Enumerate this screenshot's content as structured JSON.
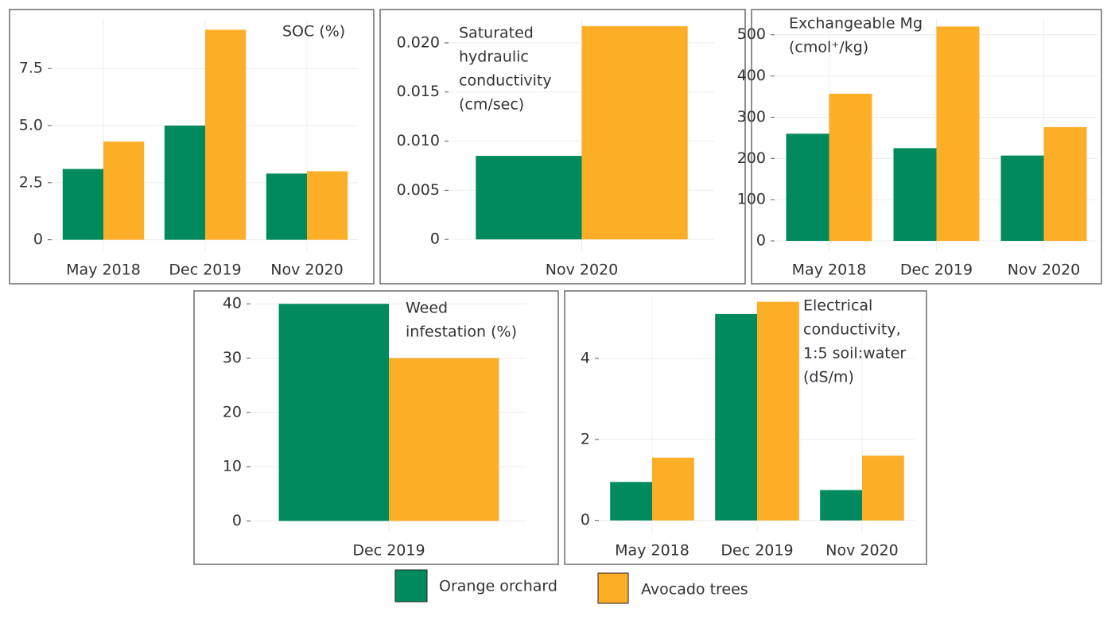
{
  "chart_data": [
    {
      "type": "bar",
      "title": [
        "SOC (%)"
      ],
      "categories": [
        "May 2018",
        "Dec 2019",
        "Nov 2020"
      ],
      "series": [
        {
          "name": "Orange orchard",
          "color": "#008a5e",
          "values": [
            3.1,
            5.0,
            2.9
          ]
        },
        {
          "name": "Avocado trees",
          "color": "#fdae27",
          "values": [
            4.3,
            9.2,
            3.0
          ]
        }
      ],
      "ylim": [
        -0.5,
        9.7
      ],
      "yticks": [
        0,
        2.5,
        {
          "value": 5,
          "label": "5.0"
        },
        7.5
      ],
      "grid": true
    },
    {
      "type": "bar",
      "title": [
        "Saturated",
        "hydraulic",
        "conductivity",
        "(cm/sec)"
      ],
      "categories": [
        "Nov 2020"
      ],
      "series": [
        {
          "name": "Orange orchard",
          "color": "#008a5e",
          "values": [
            0.0085
          ]
        },
        {
          "name": "Avocado trees",
          "color": "#fdae27",
          "values": [
            0.0217
          ]
        }
      ],
      "ylim": [
        -0.0012,
        0.0225
      ],
      "yticks": [
        0,
        0.005,
        {
          "value": 0.01,
          "label": "0.010"
        },
        0.015,
        {
          "value": 0.02,
          "label": "0.020"
        }
      ],
      "grid": true
    },
    {
      "type": "bar",
      "title": [
        "Exchangeable Mg",
        "(cmol⁺/kg)"
      ],
      "categories": [
        "May 2018",
        "Dec 2019",
        "Nov 2020"
      ],
      "series": [
        {
          "name": "Orange orchard",
          "color": "#008a5e",
          "values": [
            260,
            225,
            207
          ]
        },
        {
          "name": "Avocado trees",
          "color": "#fdae27",
          "values": [
            357,
            520,
            276
          ]
        }
      ],
      "ylim": [
        -25,
        540
      ],
      "yticks": [
        0,
        100,
        200,
        300,
        400,
        500
      ],
      "grid": true
    },
    {
      "type": "bar",
      "title": [
        "Weed",
        "infestation (%)"
      ],
      "categories": [
        "Dec 2019"
      ],
      "series": [
        {
          "name": "Orange orchard",
          "color": "#008a5e",
          "values": [
            40
          ]
        },
        {
          "name": "Avocado trees",
          "color": "#fdae27",
          "values": [
            30
          ]
        }
      ],
      "ylim": [
        -2,
        41.5
      ],
      "yticks": [
        0,
        10,
        20,
        30,
        40
      ],
      "grid": true
    },
    {
      "type": "bar",
      "title": [
        "Electrical",
        "conductivity,",
        "1:5 soil:water",
        "(dS/m)"
      ],
      "categories": [
        "May 2018",
        "Dec 2019",
        "Nov 2020"
      ],
      "series": [
        {
          "name": "Orange orchard",
          "color": "#008a5e",
          "values": [
            0.95,
            5.1,
            0.75
          ]
        },
        {
          "name": "Avocado trees",
          "color": "#fdae27",
          "values": [
            1.55,
            5.4,
            1.6
          ]
        }
      ],
      "ylim": [
        -0.28,
        5.55
      ],
      "yticks": [
        0,
        2,
        4
      ],
      "grid": true
    }
  ]
}
